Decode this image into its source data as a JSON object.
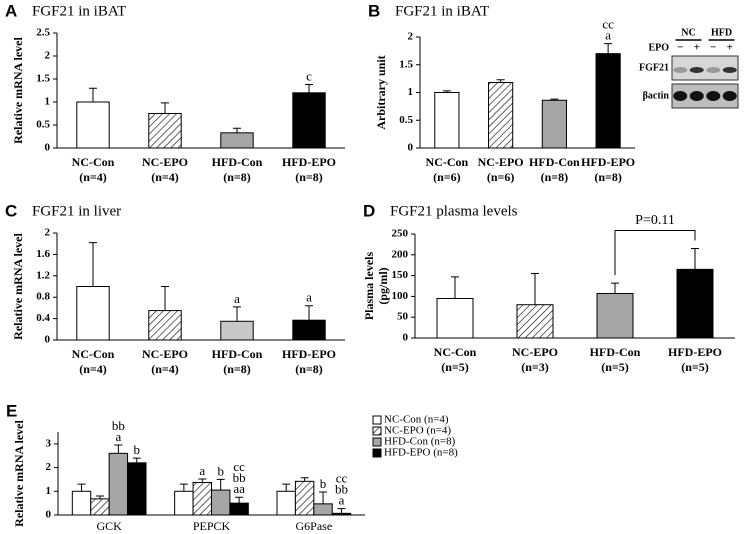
{
  "chart_data": [
    {
      "type": "bar",
      "panel_label": "A",
      "title": "FGF21 in iBAT",
      "ylabel": [
        "Relative mRNA level"
      ],
      "categories": [
        "NC-Con",
        "NC-EPO",
        "HFD-Con",
        "HFD-EPO"
      ],
      "sample_sizes": [
        "(n=4)",
        "(n=4)",
        "(n=8)",
        "(n=8)"
      ],
      "values": [
        1.0,
        0.75,
        0.33,
        1.2
      ],
      "errors": [
        0.3,
        0.23,
        0.1,
        0.18
      ],
      "colors": [
        "#ffffff",
        "#ffffff",
        "#a6a6a6",
        "#000000"
      ],
      "hatch": [
        false,
        true,
        false,
        false
      ],
      "annotations": [
        null,
        null,
        null,
        [
          "c"
        ]
      ],
      "ylim": [
        0,
        2.5
      ],
      "yticks": [
        0,
        0.5,
        1,
        1.5,
        2,
        2.5
      ]
    },
    {
      "type": "bar",
      "panel_label": "B",
      "title": "FGF21 in iBAT",
      "ylabel": [
        "Arbitrary unit"
      ],
      "categories": [
        "NC-Con",
        "NC-EPO",
        "HFD-Con",
        "HFD-EPO"
      ],
      "sample_sizes": [
        "(n=6)",
        "(n=6)",
        "(n=8)",
        "(n=8)"
      ],
      "values": [
        1.0,
        1.18,
        0.86,
        1.7
      ],
      "errors": [
        0.03,
        0.05,
        0.02,
        0.18
      ],
      "colors": [
        "#ffffff",
        "#ffffff",
        "#a6a6a6",
        "#000000"
      ],
      "hatch": [
        false,
        true,
        false,
        false
      ],
      "annotations": [
        null,
        null,
        null,
        [
          "cc",
          "a"
        ]
      ],
      "ylim": [
        0,
        2
      ],
      "yticks": [
        0,
        0.5,
        1,
        1.5,
        2
      ],
      "blot": {
        "groups": [
          "NC",
          "HFD"
        ],
        "treatment": "EPO",
        "signs": [
          "−",
          "+",
          "−",
          "+"
        ],
        "bands": [
          "FGF21",
          "βactin"
        ]
      }
    },
    {
      "type": "bar",
      "panel_label": "C",
      "title": "FGF21 in liver",
      "ylabel": [
        "Relative mRNA level"
      ],
      "categories": [
        "NC-Con",
        "NC-EPO",
        "HFD-Con",
        "HFD-EPO"
      ],
      "sample_sizes": [
        "(n=4)",
        "(n=4)",
        "(n=8)",
        "(n=8)"
      ],
      "values": [
        1.0,
        0.55,
        0.35,
        0.37
      ],
      "errors": [
        0.82,
        0.45,
        0.27,
        0.27
      ],
      "colors": [
        "#ffffff",
        "#ffffff",
        "#c8c8c8",
        "#000000"
      ],
      "hatch": [
        false,
        true,
        false,
        false
      ],
      "annotations": [
        null,
        null,
        [
          "a"
        ],
        [
          "a"
        ]
      ],
      "ylim": [
        0,
        2
      ],
      "yticks": [
        0,
        0.4,
        0.8,
        1.2,
        1.6,
        2
      ]
    },
    {
      "type": "bar",
      "panel_label": "D",
      "title": "FGF21 plasma levels",
      "ylabel": [
        "Plasma levels",
        "(pg/ml)"
      ],
      "categories": [
        "NC-Con",
        "NC-EPO",
        "HFD-Con",
        "HFD-EPO"
      ],
      "sample_sizes": [
        "(n=5)",
        "(n=3)",
        "(n=5)",
        "(n=5)"
      ],
      "values": [
        95,
        80,
        107,
        165
      ],
      "errors": [
        52,
        75,
        25,
        50
      ],
      "colors": [
        "#ffffff",
        "#ffffff",
        "#a6a6a6",
        "#000000"
      ],
      "hatch": [
        false,
        true,
        false,
        false
      ],
      "annotations": [
        null,
        null,
        null,
        null
      ],
      "bracket": {
        "label": "P=0.11",
        "categories": [
          "HFD-Con",
          "HFD-EPO"
        ]
      },
      "ylim": [
        0,
        250
      ],
      "yticks": [
        0,
        50,
        100,
        150,
        200,
        250
      ]
    },
    {
      "type": "grouped_bar",
      "panel_label": "E",
      "ylabel": [
        "Relative mRNA level"
      ],
      "categories": [
        "GCK",
        "PEPCK",
        "G6Pase"
      ],
      "series": [
        {
          "name": "NC-Con (n=4)",
          "color": "#ffffff",
          "hatch": false,
          "values": [
            1.0,
            1.0,
            1.0
          ],
          "errors": [
            0.3,
            0.3,
            0.3
          ],
          "annotations": [
            null,
            null,
            null
          ]
        },
        {
          "name": "NC-EPO (n=4)",
          "color": "#ffffff",
          "hatch": true,
          "values": [
            0.68,
            1.37,
            1.42
          ],
          "errors": [
            0.12,
            0.15,
            0.15
          ],
          "annotations": [
            null,
            [
              "a"
            ],
            null
          ]
        },
        {
          "name": "HFD-Con (n=8)",
          "color": "#a6a6a6",
          "hatch": false,
          "values": [
            2.6,
            1.05,
            0.47
          ],
          "errors": [
            0.35,
            0.45,
            0.5
          ],
          "annotations": [
            [
              "bb",
              "a"
            ],
            [
              "b"
            ],
            [
              "b"
            ]
          ]
        },
        {
          "name": "HFD-EPO (n=8)",
          "color": "#000000",
          "hatch": false,
          "values": [
            2.2,
            0.5,
            0.07
          ],
          "errors": [
            0.2,
            0.25,
            0.2
          ],
          "annotations": [
            [
              "b"
            ],
            [
              "cc",
              "bb",
              "aa"
            ],
            [
              "cc",
              "bb",
              "a"
            ]
          ]
        }
      ],
      "ylim": [
        0,
        3.5
      ],
      "yticks": [
        0,
        1,
        2,
        3
      ],
      "legend": "right"
    }
  ]
}
